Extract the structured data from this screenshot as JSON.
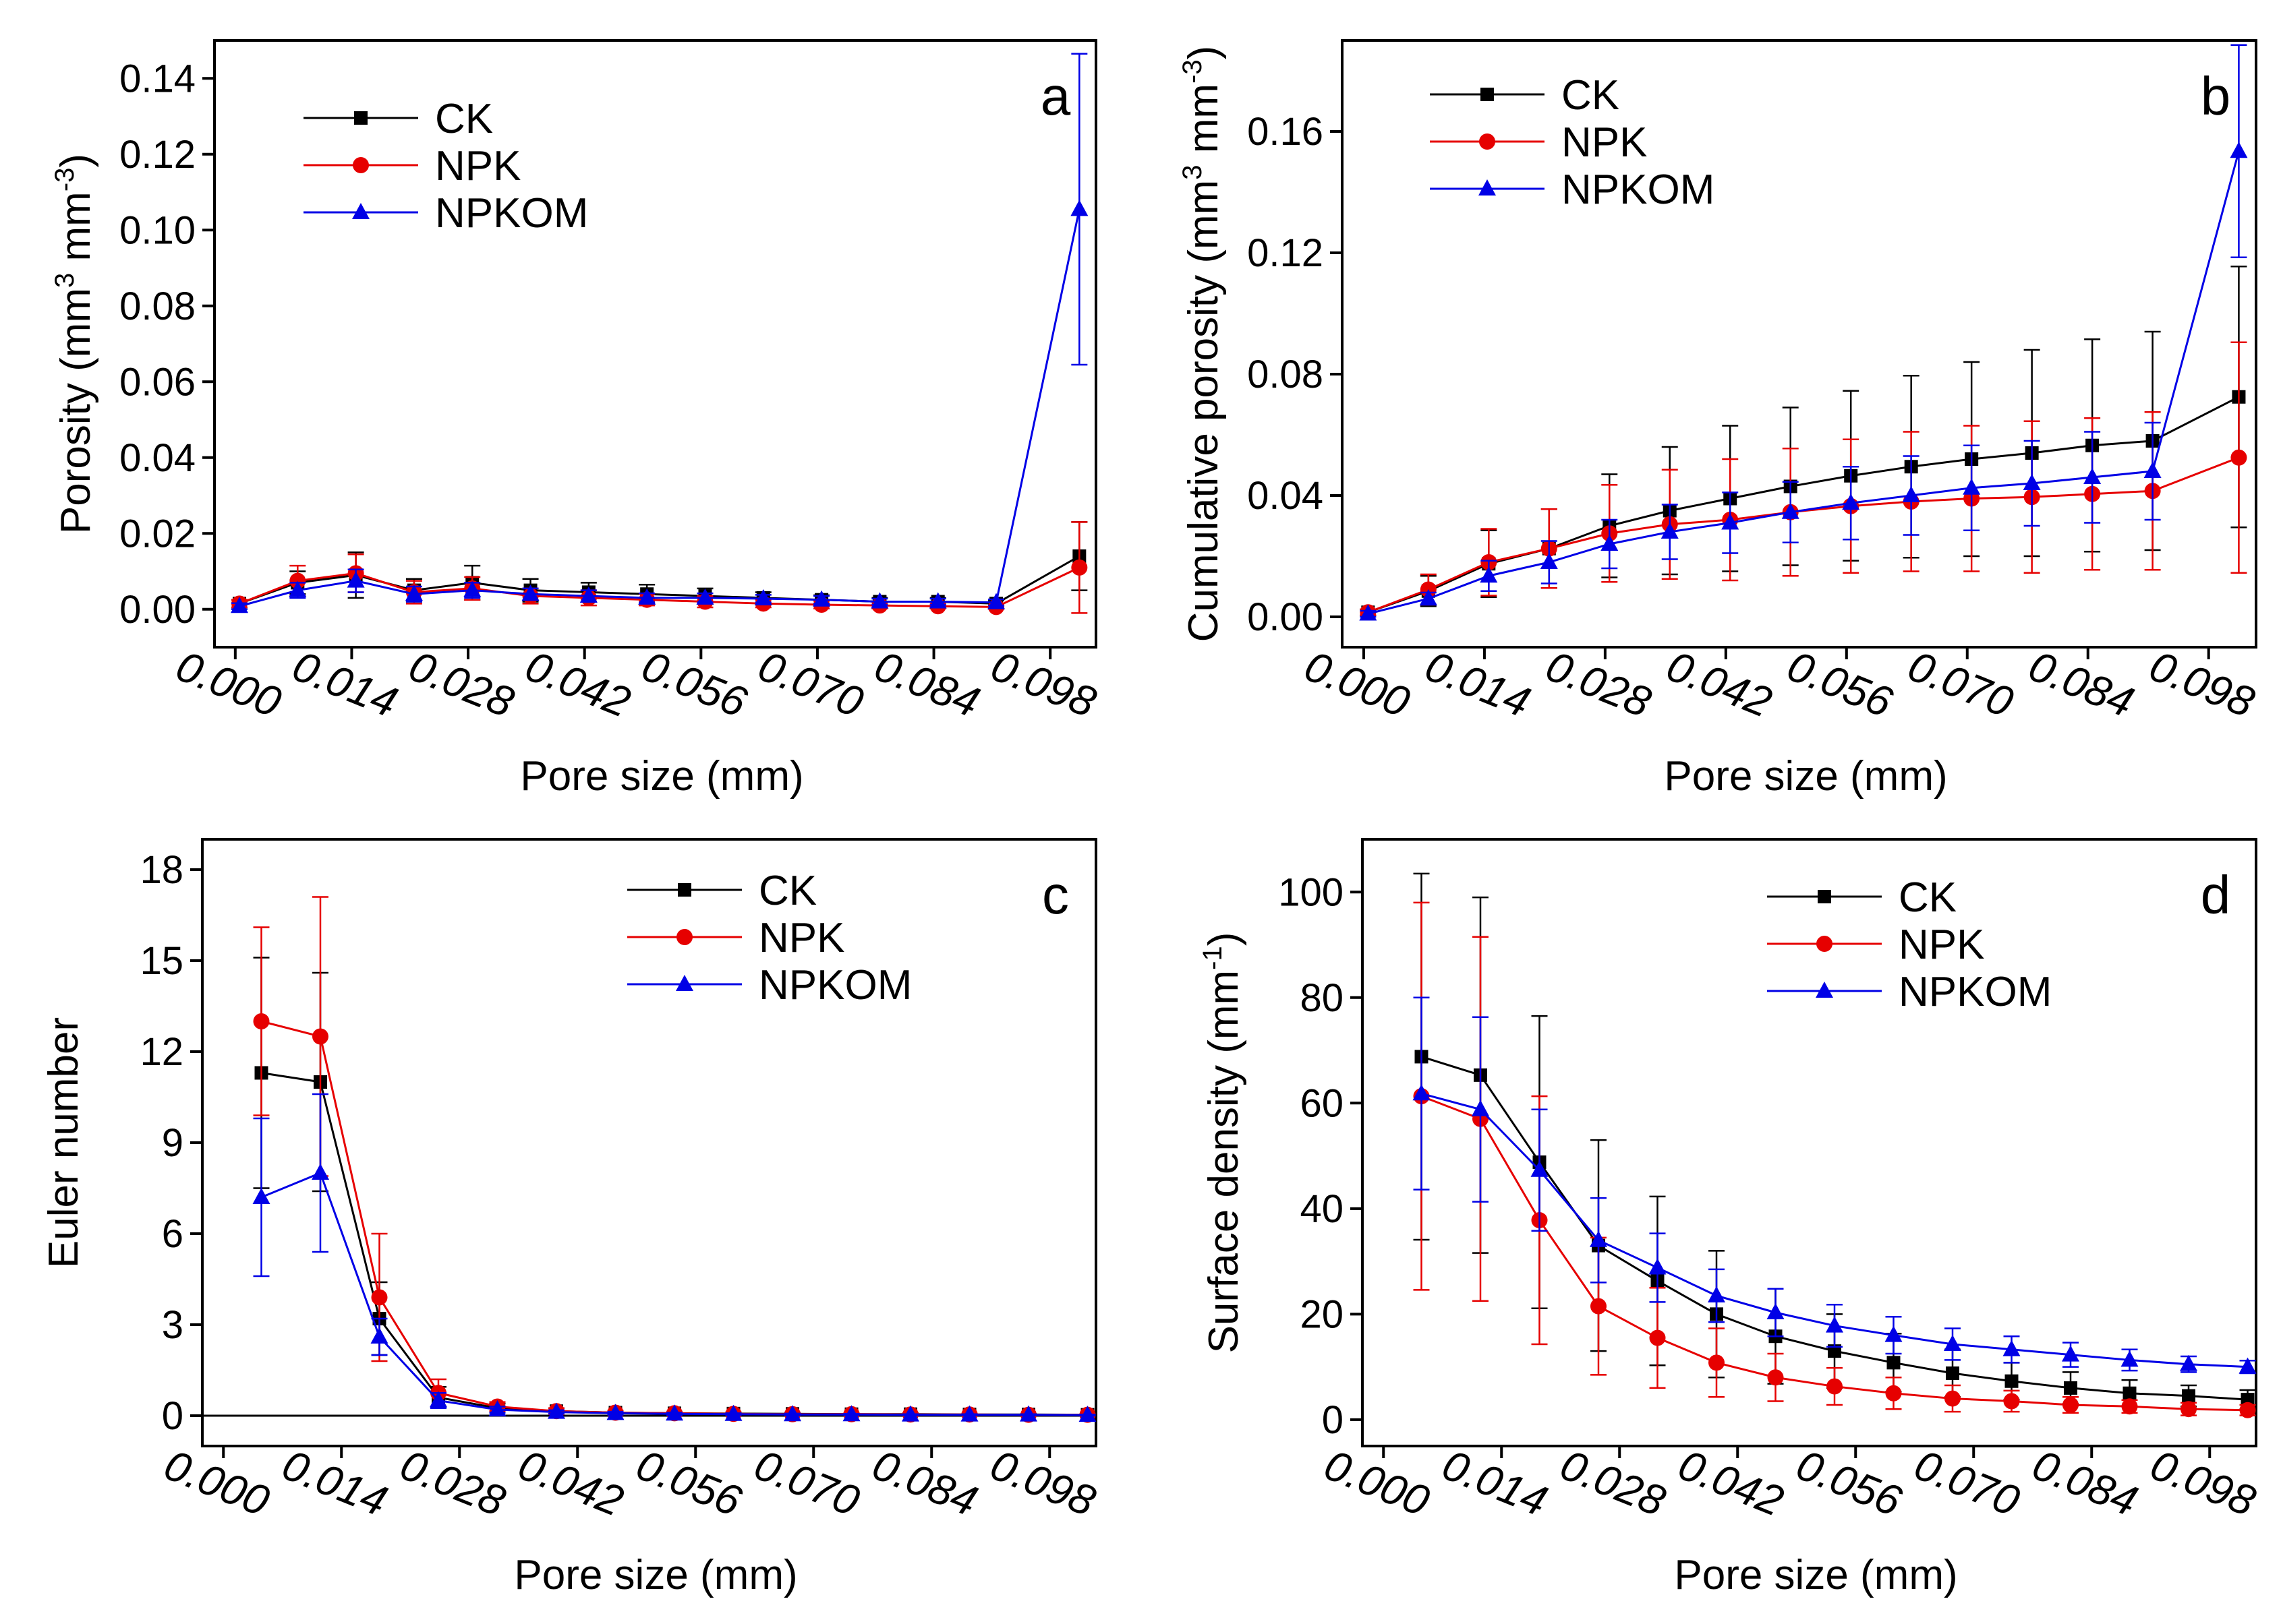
{
  "figure": {
    "legend_entries": [
      "CK",
      "NPK",
      "NPKOM"
    ],
    "series_colors": {
      "CK": "#000000",
      "NPK": "#e60000",
      "NPKOM": "#0000e6"
    },
    "marker_shapes": {
      "CK": "square",
      "NPK": "circle",
      "NPKOM": "triangle"
    }
  },
  "chart_data": [
    {
      "id": "a",
      "type": "line",
      "panel_letter": "a",
      "xlabel": "Pore size (mm)",
      "ylabel": "Porosity (mm³ mm⁻³)",
      "legend_position": "top-left",
      "xlim": [
        -0.0025,
        0.1035
      ],
      "ylim": [
        -0.01,
        0.15
      ],
      "xticks": [
        "0.000",
        "0.014",
        "0.028",
        "0.042",
        "0.056",
        "0.070",
        "0.084",
        "0.098"
      ],
      "xtick_values": [
        0,
        0.014,
        0.028,
        0.042,
        0.056,
        0.07,
        0.084,
        0.098
      ],
      "yticks": [
        "0.00",
        "0.02",
        "0.04",
        "0.06",
        "0.08",
        "0.10",
        "0.12",
        "0.14"
      ],
      "ytick_values": [
        0,
        0.02,
        0.04,
        0.06,
        0.08,
        0.1,
        0.12,
        0.14
      ],
      "x": [
        0.0035,
        0.014,
        0.007,
        0.021,
        0.028,
        0.035,
        0.042,
        0.049,
        0.056,
        0.063,
        0.07,
        0.077,
        0.084,
        0.091,
        0.098,
        0.1015
      ],
      "series": [
        {
          "name": "CK",
          "x": [
            0.0005,
            0.0075,
            0.0145,
            0.0215,
            0.0285,
            0.0355,
            0.0425,
            0.0495,
            0.0565,
            0.0635,
            0.0705,
            0.0775,
            0.0845,
            0.0915,
            0.1015
          ],
          "values": [
            0.0015,
            0.007,
            0.009,
            0.005,
            0.007,
            0.005,
            0.0045,
            0.004,
            0.0035,
            0.003,
            0.0025,
            0.002,
            0.002,
            0.0015,
            0.014
          ],
          "errors": [
            0.001,
            0.003,
            0.006,
            0.003,
            0.0045,
            0.003,
            0.0025,
            0.0025,
            0.002,
            0.0015,
            0.0012,
            0.001,
            0.001,
            0.0008,
            0.009
          ]
        },
        {
          "name": "NPK",
          "x": [
            0.0005,
            0.0075,
            0.0145,
            0.0215,
            0.0285,
            0.0355,
            0.0425,
            0.0495,
            0.0565,
            0.0635,
            0.0705,
            0.0775,
            0.0845,
            0.0915,
            0.1015
          ],
          "values": [
            0.0015,
            0.0075,
            0.0095,
            0.0045,
            0.0055,
            0.0035,
            0.003,
            0.0025,
            0.002,
            0.0015,
            0.0012,
            0.001,
            0.0008,
            0.0006,
            0.011
          ],
          "errors": [
            0.001,
            0.004,
            0.005,
            0.003,
            0.003,
            0.002,
            0.002,
            0.0015,
            0.0015,
            0.001,
            0.001,
            0.0008,
            0.0006,
            0.0005,
            0.012
          ]
        },
        {
          "name": "NPKOM",
          "x": [
            0.0005,
            0.0075,
            0.0145,
            0.0215,
            0.0285,
            0.0355,
            0.0425,
            0.0495,
            0.0565,
            0.0635,
            0.0705,
            0.0775,
            0.0845,
            0.0915,
            0.1015
          ],
          "values": [
            0.0008,
            0.005,
            0.0075,
            0.004,
            0.005,
            0.004,
            0.0035,
            0.003,
            0.003,
            0.0028,
            0.0025,
            0.002,
            0.002,
            0.0018,
            0.1055
          ],
          "errors": [
            0.0008,
            0.002,
            0.003,
            0.002,
            0.002,
            0.0015,
            0.0015,
            0.0012,
            0.0012,
            0.001,
            0.001,
            0.0008,
            0.0008,
            0.0008,
            0.041
          ]
        }
      ]
    },
    {
      "id": "b",
      "type": "line",
      "panel_letter": "b",
      "xlabel": "Pore size (mm)",
      "ylabel": "Cumulative porosity (mm³ mm⁻³)",
      "legend_position": "top-left",
      "xlim": [
        -0.0025,
        0.1035
      ],
      "ylim": [
        -0.01,
        0.19
      ],
      "xticks": [
        "0.000",
        "0.014",
        "0.028",
        "0.042",
        "0.056",
        "0.070",
        "0.084",
        "0.098"
      ],
      "xtick_values": [
        0,
        0.014,
        0.028,
        0.042,
        0.056,
        0.07,
        0.084,
        0.098
      ],
      "yticks": [
        "0.00",
        "0.04",
        "0.08",
        "0.12",
        "0.16"
      ],
      "ytick_values": [
        0,
        0.04,
        0.08,
        0.12,
        0.16
      ],
      "series": [
        {
          "name": "CK",
          "x": [
            0.0005,
            0.0075,
            0.0145,
            0.0215,
            0.0285,
            0.0355,
            0.0425,
            0.0495,
            0.0565,
            0.0635,
            0.0705,
            0.0775,
            0.0845,
            0.0915,
            0.1015
          ],
          "values": [
            0.0015,
            0.0085,
            0.0175,
            0.0225,
            0.03,
            0.035,
            0.039,
            0.043,
            0.0465,
            0.0495,
            0.052,
            0.054,
            0.0565,
            0.058,
            0.0725
          ],
          "errors": [
            0.001,
            0.005,
            0.011,
            0.013,
            0.017,
            0.021,
            0.024,
            0.026,
            0.028,
            0.03,
            0.032,
            0.034,
            0.035,
            0.036,
            0.043
          ]
        },
        {
          "name": "NPK",
          "x": [
            0.0005,
            0.0075,
            0.0145,
            0.0215,
            0.0285,
            0.0355,
            0.0425,
            0.0495,
            0.0565,
            0.0635,
            0.0705,
            0.0775,
            0.0845,
            0.0915,
            0.1015
          ],
          "values": [
            0.0015,
            0.009,
            0.018,
            0.0225,
            0.0275,
            0.0305,
            0.032,
            0.0345,
            0.0365,
            0.038,
            0.039,
            0.0395,
            0.0405,
            0.0415,
            0.0525
          ],
          "errors": [
            0.001,
            0.005,
            0.011,
            0.013,
            0.016,
            0.018,
            0.02,
            0.021,
            0.022,
            0.023,
            0.024,
            0.025,
            0.025,
            0.026,
            0.038
          ]
        },
        {
          "name": "NPKOM",
          "x": [
            0.0005,
            0.0075,
            0.0145,
            0.0215,
            0.0285,
            0.0355,
            0.0425,
            0.0495,
            0.0565,
            0.0635,
            0.0705,
            0.0775,
            0.0845,
            0.0915,
            0.1015
          ],
          "values": [
            0.001,
            0.006,
            0.0135,
            0.018,
            0.024,
            0.028,
            0.031,
            0.0345,
            0.0375,
            0.04,
            0.0425,
            0.044,
            0.046,
            0.048,
            0.1535
          ],
          "errors": [
            0.001,
            0.002,
            0.005,
            0.007,
            0.008,
            0.009,
            0.01,
            0.01,
            0.012,
            0.013,
            0.014,
            0.014,
            0.015,
            0.016,
            0.035
          ]
        }
      ]
    },
    {
      "id": "c",
      "type": "line",
      "panel_letter": "c",
      "xlabel": "Pore size (mm)",
      "ylabel": "Euler number",
      "legend_position": "top-right",
      "xlim": [
        -0.0025,
        0.1035
      ],
      "ylim": [
        -1,
        19
      ],
      "zero_line": true,
      "xticks": [
        "0.000",
        "0.014",
        "0.028",
        "0.042",
        "0.056",
        "0.070",
        "0.084",
        "0.098"
      ],
      "xtick_values": [
        0,
        0.014,
        0.028,
        0.042,
        0.056,
        0.07,
        0.084,
        0.098
      ],
      "yticks": [
        "0",
        "3",
        "6",
        "9",
        "12",
        "15",
        "18"
      ],
      "ytick_values": [
        0,
        3,
        6,
        9,
        12,
        15,
        18
      ],
      "series": [
        {
          "name": "CK",
          "x": [
            0.0045,
            0.0115,
            0.0185,
            0.0255,
            0.0325,
            0.0395,
            0.0465,
            0.0535,
            0.0605,
            0.0675,
            0.0745,
            0.0815,
            0.0885,
            0.0955,
            0.1025
          ],
          "values": [
            11.3,
            11.0,
            3.2,
            0.6,
            0.25,
            0.15,
            0.1,
            0.08,
            0.07,
            0.06,
            0.05,
            0.05,
            0.04,
            0.04,
            0.03
          ],
          "errors": [
            3.8,
            3.6,
            1.2,
            0.35,
            0.15,
            0.1,
            0.06,
            0.05,
            0.04,
            0.04,
            0.03,
            0.03,
            0.03,
            0.02,
            0.02
          ]
        },
        {
          "name": "NPK",
          "x": [
            0.0045,
            0.0115,
            0.0185,
            0.0255,
            0.0325,
            0.0395,
            0.0465,
            0.0535,
            0.0605,
            0.0675,
            0.0745,
            0.0815,
            0.0885,
            0.0955,
            0.1025
          ],
          "values": [
            13.0,
            12.5,
            3.9,
            0.75,
            0.3,
            0.15,
            0.1,
            0.08,
            0.06,
            0.05,
            0.05,
            0.04,
            0.04,
            0.03,
            0.03
          ],
          "errors": [
            3.1,
            4.6,
            2.1,
            0.45,
            0.15,
            0.1,
            0.06,
            0.05,
            0.04,
            0.04,
            0.03,
            0.03,
            0.03,
            0.02,
            0.02
          ]
        },
        {
          "name": "NPKOM",
          "x": [
            0.0045,
            0.0115,
            0.0185,
            0.0255,
            0.0325,
            0.0395,
            0.0465,
            0.0535,
            0.0605,
            0.0675,
            0.0745,
            0.0815,
            0.0885,
            0.0955,
            0.1025
          ],
          "values": [
            7.2,
            8.0,
            2.6,
            0.5,
            0.2,
            0.12,
            0.08,
            0.06,
            0.05,
            0.04,
            0.04,
            0.03,
            0.03,
            0.03,
            0.02
          ],
          "errors": [
            2.6,
            2.6,
            0.6,
            0.25,
            0.1,
            0.06,
            0.05,
            0.04,
            0.03,
            0.03,
            0.02,
            0.02,
            0.02,
            0.02,
            0.02
          ]
        }
      ]
    },
    {
      "id": "d",
      "type": "line",
      "panel_letter": "d",
      "xlabel": "Pore size (mm)",
      "ylabel": "Surface density (mm⁻¹)",
      "legend_position": "top-right",
      "xlim": [
        -0.0025,
        0.1035
      ],
      "ylim": [
        -5,
        110
      ],
      "xticks": [
        "0.000",
        "0.014",
        "0.028",
        "0.042",
        "0.056",
        "0.070",
        "0.084",
        "0.098"
      ],
      "xtick_values": [
        0,
        0.014,
        0.028,
        0.042,
        0.056,
        0.07,
        0.084,
        0.098
      ],
      "yticks": [
        "0",
        "20",
        "40",
        "60",
        "80",
        "100"
      ],
      "ytick_values": [
        0,
        20,
        40,
        60,
        80,
        100
      ],
      "series": [
        {
          "name": "CK",
          "x": [
            0.0045,
            0.0115,
            0.0185,
            0.0255,
            0.0325,
            0.0395,
            0.0465,
            0.0535,
            0.0605,
            0.0675,
            0.0745,
            0.0815,
            0.0885,
            0.0955,
            0.1025
          ],
          "values": [
            68.8,
            65.3,
            48.8,
            33.0,
            26.3,
            20.0,
            15.8,
            13.0,
            10.8,
            8.8,
            7.3,
            6.0,
            5.0,
            4.5,
            3.8
          ],
          "errors": [
            34.7,
            33.7,
            27.7,
            20.0,
            16.0,
            12.0,
            9.0,
            7.0,
            5.5,
            4.5,
            3.5,
            3.0,
            2.5,
            2.0,
            1.8
          ]
        },
        {
          "name": "NPK",
          "x": [
            0.0045,
            0.0115,
            0.0185,
            0.0255,
            0.0325,
            0.0395,
            0.0465,
            0.0535,
            0.0605,
            0.0675,
            0.0745,
            0.0815,
            0.0885,
            0.0955,
            0.1025
          ],
          "values": [
            61.3,
            57.0,
            37.8,
            21.5,
            15.5,
            10.8,
            8.0,
            6.3,
            5.0,
            4.0,
            3.5,
            2.8,
            2.5,
            2.0,
            1.8
          ],
          "errors": [
            36.7,
            34.5,
            23.5,
            13.0,
            9.5,
            6.5,
            4.5,
            3.5,
            3.0,
            2.5,
            2.0,
            1.5,
            1.2,
            1.2,
            1.0
          ]
        },
        {
          "name": "NPKOM",
          "x": [
            0.0045,
            0.0115,
            0.0185,
            0.0255,
            0.0325,
            0.0395,
            0.0465,
            0.0535,
            0.0605,
            0.0675,
            0.0745,
            0.0815,
            0.0885,
            0.0955,
            0.1025
          ],
          "values": [
            61.8,
            58.8,
            47.3,
            34.0,
            28.8,
            23.5,
            20.3,
            17.8,
            16.0,
            14.3,
            13.3,
            12.3,
            11.3,
            10.5,
            10.0
          ],
          "errors": [
            18.2,
            17.5,
            11.5,
            8.0,
            6.5,
            5.0,
            4.5,
            4.0,
            3.5,
            3.0,
            2.5,
            2.3,
            2.0,
            1.5,
            1.2
          ]
        }
      ]
    }
  ]
}
